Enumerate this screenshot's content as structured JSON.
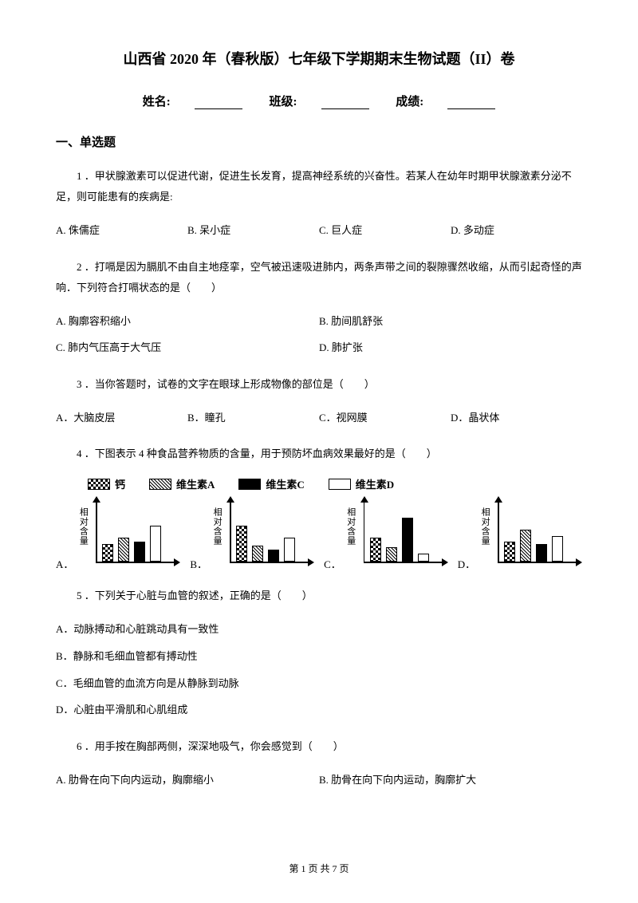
{
  "title": "山西省 2020 年（春秋版）七年级下学期期末生物试题（II）卷",
  "info": {
    "name_label": "姓名:",
    "class_label": "班级:",
    "score_label": "成绩:"
  },
  "section1": "一、单选题",
  "q1": {
    "text": "1 ．甲状腺激素可以促进代谢，促进生长发育，提高神经系统的兴奋性。若某人在幼年时期甲状腺激素分泌不足，则可能患有的疾病是:",
    "a": "A. 侏儒症",
    "b": "B. 呆小症",
    "c": "C. 巨人症",
    "d": "D. 多动症"
  },
  "q2": {
    "text": "2 ．打嗝是因为膈肌不由自主地痉挛，空气被迅速吸进肺内，两条声带之间的裂隙骤然收缩，从而引起奇怪的声响．下列符合打嗝状态的是（　　）",
    "a": "A. 胸廓容积缩小",
    "b": "B. 肋间肌舒张",
    "c": "C. 肺内气压高于大气压",
    "d": "D. 肺扩张"
  },
  "q3": {
    "text": "3 ．当你答题时，试卷的文字在眼球上形成物像的部位是（　　）",
    "a": "A．大脑皮层",
    "b": "B．瞳孔",
    "c": "C．视网膜",
    "d": "D．晶状体"
  },
  "q4": {
    "text": "4 ．下图表示 4 种食品营养物质的含量，用于预防坏血病效果最好的是（　　）",
    "legend": {
      "a": "钙",
      "b": "维生素A",
      "c": "维生素C",
      "d": "维生素D"
    },
    "y_label": "相对含量",
    "labels": {
      "a": "A．",
      "b": "B．",
      "c": "C．",
      "d": "D．"
    },
    "charts": {
      "A": [
        22,
        30,
        25,
        45
      ],
      "B": [
        45,
        20,
        15,
        30
      ],
      "C": [
        30,
        18,
        55,
        10
      ],
      "D": [
        25,
        40,
        22,
        32
      ]
    },
    "bar_fills": [
      "checker",
      "diag",
      "black",
      "white"
    ]
  },
  "q5": {
    "text": "5 ．下列关于心脏与血管的叙述，正确的是（　　）",
    "a": "A．动脉搏动和心脏跳动具有一致性",
    "b": "B．静脉和毛细血管都有搏动性",
    "c": "C．毛细血管的血流方向是从静脉到动脉",
    "d": "D．心脏由平滑肌和心肌组成"
  },
  "q6": {
    "text": "6 ．用手按在胸部两侧，深深地吸气，你会感觉到（　　）",
    "a": "A. 肋骨在向下向内运动，胸廓缩小",
    "b": "B. 肋骨在向下向内运动，胸廓扩大"
  },
  "footer": "第 1 页 共 7 页"
}
